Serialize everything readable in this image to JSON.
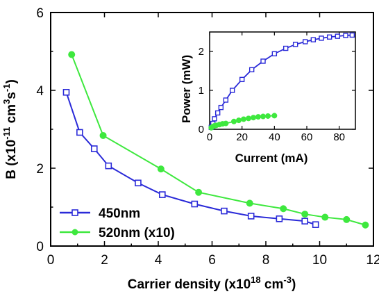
{
  "chart_data": [
    {
      "type": "line",
      "xlabel": {
        "main": "Carrier density (x10",
        "sup": "18",
        "mid": " cm",
        "sup2": "-3",
        "end": ")"
      },
      "ylabel": {
        "main": "B (x10",
        "sup": "-11",
        "mid": " cm",
        "sup2": "3",
        "mid2": "s",
        "sup3": "-1",
        "end": ")"
      },
      "xlim": [
        0,
        12
      ],
      "ylim": [
        0,
        6
      ],
      "xticks": [
        "0",
        "2",
        "4",
        "6",
        "8",
        "10",
        "12"
      ],
      "yticks": [
        "0",
        "2",
        "4",
        "6"
      ],
      "legend_position": "bottom-left",
      "series": [
        {
          "name": "450nm",
          "color": "#2a2ad8",
          "marker": "open-square",
          "x": [
            0.58,
            1.08,
            1.62,
            2.15,
            3.25,
            4.15,
            5.35,
            6.45,
            7.45,
            8.5,
            9.45,
            9.85
          ],
          "y": [
            3.95,
            2.92,
            2.5,
            2.06,
            1.62,
            1.32,
            1.08,
            0.9,
            0.77,
            0.7,
            0.64,
            0.55
          ]
        },
        {
          "name": "520nm (x10)",
          "color": "#3ee83e",
          "marker": "filled-circle",
          "x": [
            0.78,
            1.95,
            4.1,
            5.5,
            7.4,
            8.65,
            9.45,
            10.2,
            11.0,
            11.7
          ],
          "y": [
            4.92,
            2.84,
            1.98,
            1.38,
            1.1,
            0.96,
            0.82,
            0.74,
            0.68,
            0.54
          ]
        }
      ]
    },
    {
      "type": "line",
      "xlabel": "Current (mA)",
      "ylabel": "Power (mW)",
      "xlim": [
        0,
        90
      ],
      "ylim": [
        0,
        2.5
      ],
      "xticks": [
        "0",
        "20",
        "40",
        "60",
        "80"
      ],
      "yticks": [
        "0",
        "1",
        "2"
      ],
      "series": [
        {
          "color": "#2a2ad8",
          "marker": "open-square",
          "x": [
            1,
            2,
            3,
            5,
            7,
            10,
            14,
            20,
            26,
            33,
            40,
            47,
            53,
            59,
            64,
            69,
            74,
            79,
            84,
            88
          ],
          "y": [
            0.05,
            0.15,
            0.27,
            0.42,
            0.56,
            0.75,
            1.0,
            1.28,
            1.53,
            1.75,
            1.94,
            2.08,
            2.18,
            2.25,
            2.3,
            2.34,
            2.37,
            2.39,
            2.41,
            2.42
          ]
        },
        {
          "color": "#3ee83e",
          "marker": "filled-circle",
          "x": [
            1,
            2,
            3,
            4,
            6,
            8,
            10,
            15,
            18,
            21,
            24,
            27,
            30,
            33,
            36,
            40
          ],
          "y": [
            0.04,
            0.07,
            0.09,
            0.1,
            0.12,
            0.14,
            0.15,
            0.2,
            0.23,
            0.26,
            0.28,
            0.3,
            0.32,
            0.33,
            0.34,
            0.35
          ]
        }
      ]
    }
  ]
}
